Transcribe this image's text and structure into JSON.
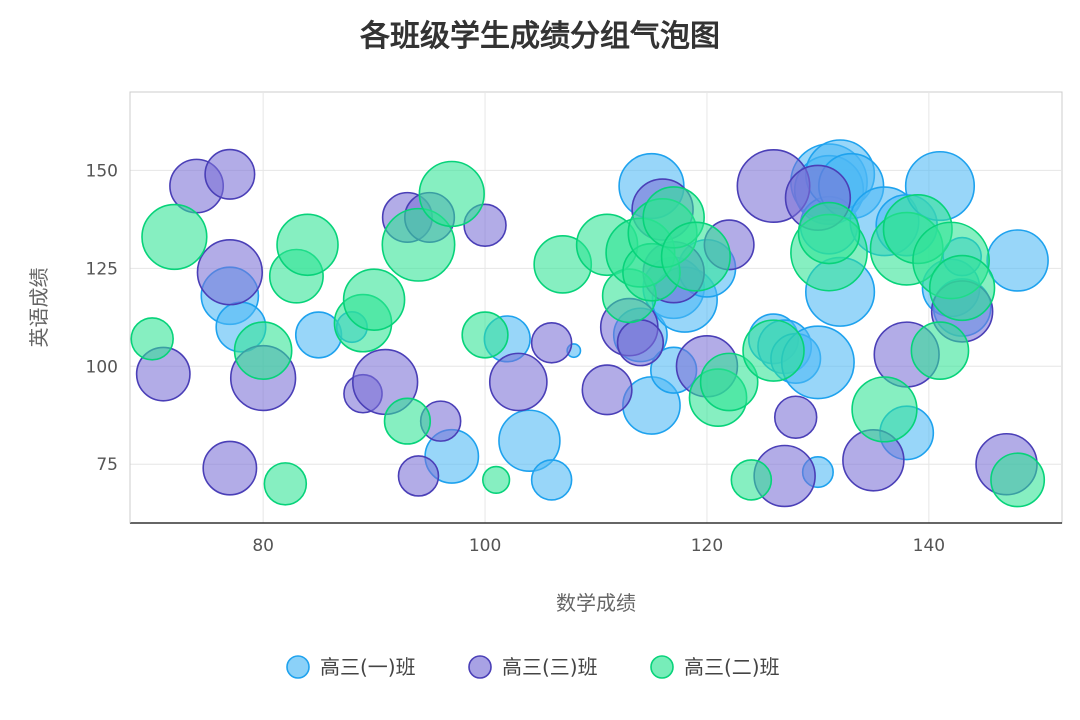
{
  "chart_data": {
    "type": "scatter",
    "title": "各班级学生成绩分组气泡图",
    "xlabel": "数学成绩",
    "ylabel": "英语成绩",
    "xlim": [
      68,
      152
    ],
    "ylim": [
      60,
      170
    ],
    "xticks": [
      80,
      100,
      120,
      140
    ],
    "yticks": [
      75,
      100,
      125,
      150
    ],
    "grid": true,
    "legend_position": "bottom",
    "series": [
      {
        "name": "高三(一)班",
        "color": "#4db8f5",
        "stroke": "#1ea2ee",
        "points": [
          [
            77,
            118,
            30
          ],
          [
            78,
            110,
            26
          ],
          [
            85,
            108,
            24
          ],
          [
            88,
            110,
            16
          ],
          [
            97,
            77,
            28
          ],
          [
            102,
            107,
            24
          ],
          [
            104,
            81,
            32
          ],
          [
            106,
            71,
            21
          ],
          [
            108,
            104,
            7
          ],
          [
            114,
            108,
            28
          ],
          [
            115,
            146,
            34
          ],
          [
            115,
            90,
            30
          ],
          [
            117,
            99,
            24
          ],
          [
            117,
            120,
            32
          ],
          [
            118,
            117,
            34
          ],
          [
            120,
            125,
            30
          ],
          [
            126,
            107,
            26
          ],
          [
            127,
            105,
            28
          ],
          [
            128,
            102,
            26
          ],
          [
            130,
            101,
            38
          ],
          [
            130,
            73,
            16
          ],
          [
            131,
            147,
            40
          ],
          [
            131,
            145,
            36
          ],
          [
            131,
            136,
            30
          ],
          [
            132,
            149,
            36
          ],
          [
            132,
            119,
            36
          ],
          [
            133,
            146,
            34
          ],
          [
            136,
            137,
            36
          ],
          [
            138,
            136,
            32
          ],
          [
            138,
            83,
            28
          ],
          [
            141,
            146,
            36
          ],
          [
            142,
            120,
            30
          ],
          [
            143,
            115,
            30
          ],
          [
            148,
            127,
            32
          ],
          [
            143,
            128,
            20
          ]
        ]
      },
      {
        "name": "高三(三)班",
        "color": "#7a70d6",
        "stroke": "#4a3fb7",
        "points": [
          [
            71,
            98,
            28
          ],
          [
            74,
            146,
            28
          ],
          [
            77,
            149,
            26
          ],
          [
            77,
            124,
            34
          ],
          [
            77,
            74,
            28
          ],
          [
            80,
            97,
            34
          ],
          [
            89,
            93,
            20
          ],
          [
            91,
            96,
            34
          ],
          [
            93,
            138,
            26
          ],
          [
            94,
            72,
            21
          ],
          [
            95,
            138,
            26
          ],
          [
            96,
            86,
            21
          ],
          [
            100,
            136,
            22
          ],
          [
            103,
            96,
            30
          ],
          [
            106,
            106,
            21
          ],
          [
            111,
            94,
            26
          ],
          [
            113,
            110,
            30
          ],
          [
            114,
            106,
            24
          ],
          [
            116,
            140,
            32
          ],
          [
            117,
            124,
            32
          ],
          [
            120,
            100,
            32
          ],
          [
            122,
            131,
            26
          ],
          [
            126,
            146,
            38
          ],
          [
            127,
            72,
            32
          ],
          [
            128,
            87,
            22
          ],
          [
            130,
            143,
            34
          ],
          [
            135,
            76,
            32
          ],
          [
            138,
            103,
            34
          ],
          [
            143,
            114,
            32
          ],
          [
            147,
            75,
            32
          ]
        ]
      },
      {
        "name": "高三(二)班",
        "color": "#2ee394",
        "stroke": "#07d37a",
        "points": [
          [
            70,
            107,
            22
          ],
          [
            72,
            133,
            34
          ],
          [
            80,
            104,
            30
          ],
          [
            82,
            70,
            22
          ],
          [
            83,
            123,
            28
          ],
          [
            84,
            131,
            32
          ],
          [
            89,
            111,
            30
          ],
          [
            90,
            117,
            32
          ],
          [
            93,
            86,
            24
          ],
          [
            94,
            131,
            38
          ],
          [
            97,
            144,
            34
          ],
          [
            100,
            108,
            24
          ],
          [
            101,
            71,
            14
          ],
          [
            107,
            126,
            30
          ],
          [
            111,
            131,
            32
          ],
          [
            113,
            118,
            28
          ],
          [
            114,
            129,
            36
          ],
          [
            115,
            124,
            30
          ],
          [
            116,
            134,
            36
          ],
          [
            117,
            138,
            32
          ],
          [
            119,
            128,
            36
          ],
          [
            121,
            92,
            30
          ],
          [
            122,
            96,
            30
          ],
          [
            124,
            71,
            21
          ],
          [
            126,
            104,
            32
          ],
          [
            131,
            129,
            40
          ],
          [
            131,
            134,
            32
          ],
          [
            136,
            89,
            34
          ],
          [
            138,
            130,
            38
          ],
          [
            139,
            135,
            36
          ],
          [
            141,
            104,
            30
          ],
          [
            142,
            127,
            40
          ],
          [
            143,
            120,
            34
          ],
          [
            148,
            71,
            28
          ]
        ]
      }
    ]
  }
}
